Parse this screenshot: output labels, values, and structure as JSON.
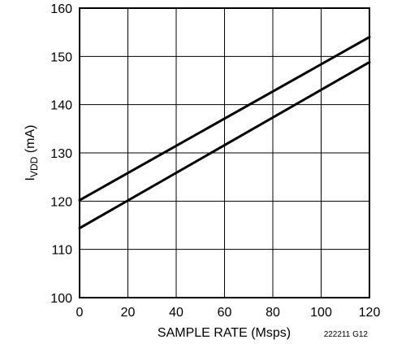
{
  "chart_data": {
    "type": "line",
    "title": "",
    "xlabel": "SAMPLE RATE (Msps)",
    "ylabel": {
      "main": "I",
      "subscript": "VDD",
      "unit": " (mA)"
    },
    "xlim": [
      0,
      120
    ],
    "ylim": [
      100,
      160
    ],
    "xticks": [
      "0",
      "20",
      "40",
      "60",
      "80",
      "100",
      "120"
    ],
    "yticks": [
      "100",
      "110",
      "120",
      "130",
      "140",
      "150",
      "160"
    ],
    "grid": true,
    "legend": "none",
    "figure_id": "222211 G12",
    "series": [
      {
        "x": [
          0,
          120
        ],
        "y": [
          120.2,
          154.0
        ],
        "color": "#000000"
      },
      {
        "x": [
          0,
          120
        ],
        "y": [
          114.4,
          148.8
        ],
        "color": "#000000"
      }
    ]
  }
}
